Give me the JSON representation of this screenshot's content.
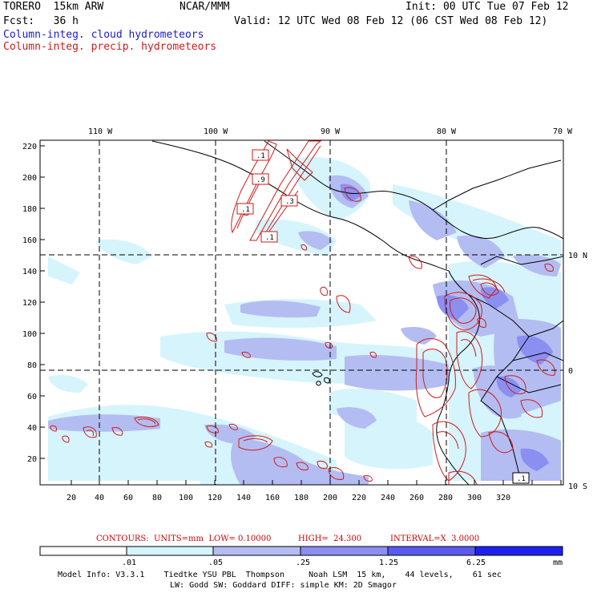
{
  "header": {
    "model": "TORERO  15km ARW",
    "org": "NCAR/MMM",
    "init": "Init: 00 UTC Tue 07 Feb 12",
    "fcst": "Fcst:   36 h",
    "valid": "Valid: 12 UTC Wed 08 Feb 12 (06 CST Wed 08 Feb 12)",
    "field1": "Column-integ. cloud hydrometeors",
    "field2": "Column-integ. precip. hydrometeors"
  },
  "colors": {
    "cloud_field": "#1b1bd0",
    "precip_field": "#d21a1a",
    "shade_levels": [
      "#ffffff",
      "#d6f4fb",
      "#b3bdf2",
      "#8b8ff2",
      "#5a5af0",
      "#1f1ff2"
    ]
  },
  "map": {
    "lon_labels": [
      "110 W",
      "100 W",
      "90 W",
      "80 W",
      "70 W"
    ],
    "lat_labels": [
      "10 N",
      "0",
      "10 S"
    ],
    "y_ticks": [
      "220",
      "200",
      "180",
      "160",
      "140",
      "120",
      "100",
      "80",
      "60",
      "40",
      "20"
    ],
    "x_ticks": [
      "20",
      "40",
      "60",
      "80",
      "100",
      "120",
      "140",
      "160",
      "180",
      "200",
      "220",
      "240",
      "260",
      "280",
      "300",
      "320"
    ],
    "contour_labels": [
      ".1",
      ".9",
      ".1",
      ".3",
      ".1",
      ".1"
    ]
  },
  "contours": {
    "units": "CONTOURS:  UNITS=mm  LOW= 0.10000",
    "high": "HIGH=  24.300",
    "interval": "INTERVAL=X  3.0000"
  },
  "colorbar": {
    "labels": [
      ".01",
      ".05",
      ".25",
      "1.25",
      "6.25"
    ],
    "unit": "mm"
  },
  "model_info": {
    "line1": "Model Info: V3.3.1    Tiedtke YSU PBL  Thompson     Noah LSM  15 km,    44 levels,    61 sec",
    "line2": "LW: Godd SW: Goddard DIFF: simple KM: 2D Smagor"
  }
}
